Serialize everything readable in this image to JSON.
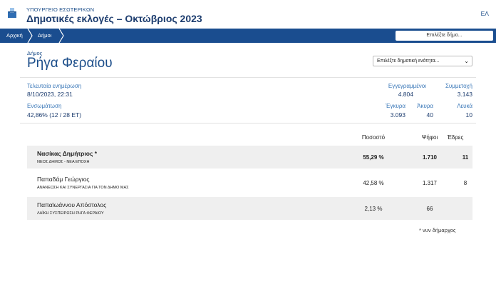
{
  "header": {
    "ministry": "ΥΠΟΥΡΓΕΙΟ ΕΣΩΤΕΡΙΚΩΝ",
    "title": "Δημοτικές εκλογές – Οκτώβριος 2023",
    "lang": "ΕΛ"
  },
  "nav": {
    "home": "Αρχική",
    "municipalities": "Δήμοι",
    "select_placeholder": "Επιλέξτε δήμο..."
  },
  "municipality": {
    "label": "Δήμος",
    "name": "Ρήγα Φεραίου",
    "unit_select": "Επιλέξτε δημοτική ενότητα..."
  },
  "stats": {
    "last_update_label": "Τελευταία ενημέρωση",
    "last_update_value": "8/10/2023, 22:31",
    "registered_label": "Εγγεγραμμένοι",
    "registered_value": "4.804",
    "turnout_label": "Συμμετοχή",
    "turnout_value": "3.143",
    "incorporation_label": "Ενσωμάτωση",
    "incorporation_value": "42,86% (12 / 28 ΕΤ)",
    "valid_label": "Έγκυρα",
    "valid_value": "3.093",
    "invalid_label": "Άκυρα",
    "invalid_value": "40",
    "blank_label": "Λευκά",
    "blank_value": "10"
  },
  "results": {
    "columns": {
      "pct": "Ποσοστό",
      "votes": "Ψήφοι",
      "seats": "Έδρες"
    },
    "rows": [
      {
        "candidate": "Νασίκας Δημήτριος *",
        "party": "ΝΕΟΣ ΔΗΜΟΣ - ΝΕΑ ΕΠΟΧΗ",
        "pct": "55,29 %",
        "votes": "1.710",
        "seats": "11"
      },
      {
        "candidate": "Παπαδάμ Γεώργιος",
        "party": "ΑΝΑΝΕΩΣΗ ΚΑΙ ΣΥΝΕΡΓΑΣΙΑ ΓΙΑ ΤΟΝ ΔΗΜΟ ΜΑΣ",
        "pct": "42,58 %",
        "votes": "1.317",
        "seats": "8"
      },
      {
        "candidate": "Παπαϊωάννου Απόστολος",
        "party": "ΛΑΪΚΗ ΣΥΣΠΕΙΡΩΣΗ ΡΗΓΑ ΦΕΡΑΙΟΥ",
        "pct": "2,13 %",
        "votes": "66",
        "seats": ""
      }
    ],
    "footnote": "* νυν δήμαρχος"
  },
  "colors": {
    "primary": "#1a4d8f",
    "accent": "#3b78b8",
    "row_shade": "#efefef"
  }
}
